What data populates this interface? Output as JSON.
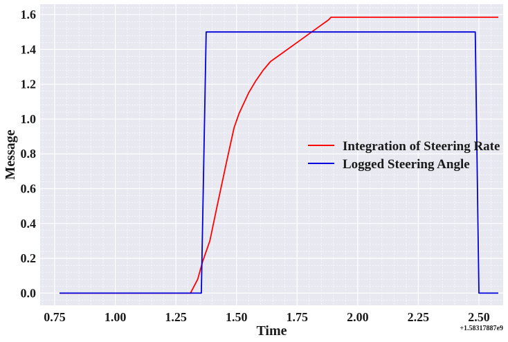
{
  "chart_data": {
    "type": "line",
    "xlabel": "Time",
    "ylabel": "Message",
    "x_offset_label": "+1.58317887e9",
    "xlim": [
      0.69,
      2.6
    ],
    "ylim": [
      -0.07,
      1.66
    ],
    "xticks": [
      0.75,
      1.0,
      1.25,
      1.5,
      1.75,
      2.0,
      2.25,
      2.5
    ],
    "xtick_labels": [
      "0.75",
      "1.00",
      "1.25",
      "1.50",
      "1.75",
      "2.00",
      "2.25",
      "2.50"
    ],
    "yticks": [
      0.0,
      0.2,
      0.4,
      0.6,
      0.8,
      1.0,
      1.2,
      1.4,
      1.6
    ],
    "ytick_labels": [
      "0.0",
      "0.2",
      "0.4",
      "0.6",
      "0.8",
      "1.0",
      "1.2",
      "1.4",
      "1.6"
    ],
    "grid": true,
    "minor_grid": true,
    "legend_position": "center-right",
    "background": "#e8e8f0",
    "series": [
      {
        "name": "Integration of Steering Rate",
        "color": "#ff0000",
        "x": [
          0.77,
          1.31,
          1.34,
          1.36,
          1.39,
          1.42,
          1.46,
          1.49,
          1.51,
          1.55,
          1.58,
          1.61,
          1.64,
          1.7,
          1.76,
          1.82,
          1.88,
          1.89,
          2.0,
          2.25,
          2.5,
          2.58
        ],
        "y": [
          0.0,
          0.0,
          0.08,
          0.18,
          0.3,
          0.5,
          0.76,
          0.95,
          1.03,
          1.15,
          1.22,
          1.28,
          1.33,
          1.39,
          1.45,
          1.51,
          1.57,
          1.585,
          1.585,
          1.585,
          1.585,
          1.585
        ]
      },
      {
        "name": "Logged Steering Angle",
        "color": "#0000dd",
        "x": [
          0.77,
          1.355,
          1.375,
          2.485,
          2.5,
          2.58
        ],
        "y": [
          0.0,
          0.0,
          1.5,
          1.5,
          0.0,
          0.0
        ]
      }
    ]
  }
}
